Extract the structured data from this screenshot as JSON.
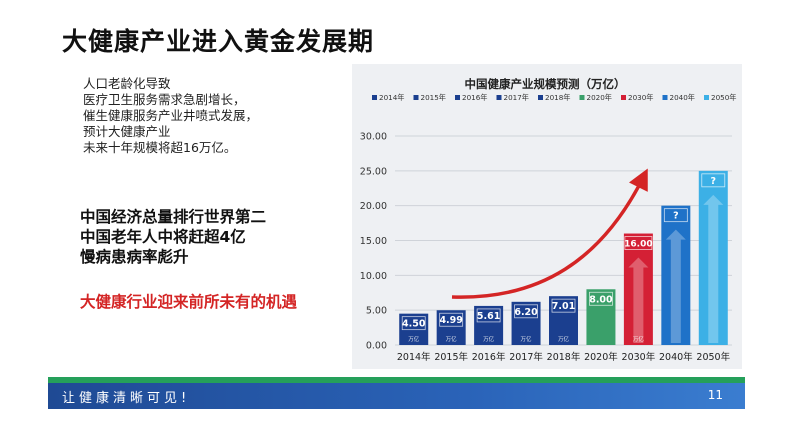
{
  "slide": {
    "title": "大健康产业进入黄金发展期",
    "intro_lines": [
      "人口老龄化导致",
      "医疗卫生服务需求急剧增长，",
      "催生健康服务产业井喷式发展，",
      "预计大健康产业",
      "未来十年规模将超16万亿。"
    ],
    "facts": [
      "中国经济总量排行世界第二",
      "中国老年人中将赶超4亿",
      "慢病患病率彪升"
    ],
    "opportunity": "大健康行业迎来前所未有的机遇",
    "footer_slogan": "让健康清晰可见!",
    "page_number": "11"
  },
  "colors": {
    "navy": "#1b3f8f",
    "green": "#3aa06a",
    "red": "#d42035",
    "blue": "#1f72c8",
    "light_blue": "#3cb0e6",
    "arrow": "#d42525"
  },
  "chart_data": {
    "type": "bar",
    "title": "中国健康产业规模预测（万亿）",
    "categories": [
      "2014年",
      "2015年",
      "2016年",
      "2017年",
      "2018年",
      "2020年",
      "2030年",
      "2040年",
      "2050年"
    ],
    "values": [
      4.5,
      4.99,
      5.61,
      6.2,
      7.01,
      8.0,
      16.0,
      20,
      25
    ],
    "value_labels": [
      "4.50",
      "4.99",
      "5.61",
      "6.20",
      "7.01",
      "8.00",
      "16.00",
      "?",
      "?"
    ],
    "bar_sublabels": [
      "万亿",
      "万亿",
      "万亿",
      "万亿",
      "万亿",
      "",
      "万亿",
      "",
      ""
    ],
    "legend": [
      "2014年",
      "2015年",
      "2016年",
      "2017年",
      "2018年",
      "2020年",
      "2030年",
      "2040年",
      "2050年"
    ],
    "bar_colors": [
      "#1b3f8f",
      "#1b3f8f",
      "#1b3f8f",
      "#1b3f8f",
      "#1b3f8f",
      "#3aa06a",
      "#d42035",
      "#1f72c8",
      "#3cb0e6"
    ],
    "yticks": [
      "0.00",
      "5.00",
      "10.00",
      "15.00",
      "20.00",
      "25.00",
      "30.00"
    ],
    "ylim": [
      0,
      30
    ],
    "grid": true,
    "legend_position": "top",
    "annotation": "curved red arrow rising from 2015 to 2030"
  }
}
